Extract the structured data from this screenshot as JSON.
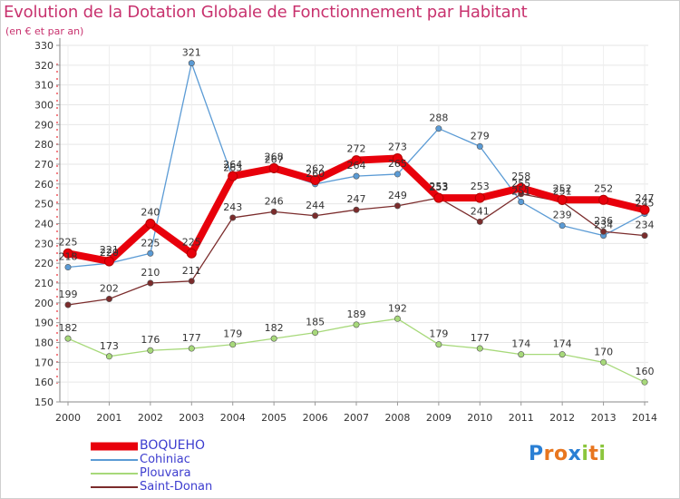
{
  "header": {
    "title": "Evolution de la Dotation Globale de Fonctionnement par Habitant",
    "subtitle": "(en € et par an)"
  },
  "logo": {
    "text": "Proxiti",
    "letters": [
      {
        "ch": "P",
        "color": "#2a7fd4"
      },
      {
        "ch": "r",
        "color": "#e8761f"
      },
      {
        "ch": "o",
        "color": "#e8761f"
      },
      {
        "ch": "x",
        "color": "#2a7fd4"
      },
      {
        "ch": "i",
        "color": "#8cc63e"
      },
      {
        "ch": "t",
        "color": "#e8761f"
      },
      {
        "ch": "i",
        "color": "#8cc63e"
      }
    ]
  },
  "chart_data": {
    "type": "line",
    "title": "Evolution de la Dotation Globale de Fonctionnement par Habitant",
    "subtitle": "(en € et par an)",
    "xlabel": "",
    "ylabel": "",
    "x": [
      "2000",
      "2001",
      "2002",
      "2003",
      "2004",
      "2005",
      "2006",
      "2007",
      "2008",
      "2009",
      "2010",
      "2011",
      "2012",
      "2013",
      "2014"
    ],
    "yticks": [
      150,
      160,
      170,
      180,
      190,
      200,
      210,
      220,
      230,
      240,
      250,
      260,
      270,
      280,
      290,
      300,
      310,
      320,
      330
    ],
    "ylim": [
      150,
      330
    ],
    "grid": true,
    "legend_position": "bottom-left",
    "series": [
      {
        "name": "BOQUEHO",
        "color": "#e8000b",
        "emphasis": "thick",
        "values": [
          225,
          221,
          240,
          225,
          264,
          268,
          262,
          272,
          273,
          253,
          253,
          258,
          252,
          252,
          247
        ],
        "labels": [
          "225",
          "221",
          "240",
          "225",
          "264",
          "268",
          "262",
          "272",
          "273",
          "253",
          "253",
          "258",
          "252",
          "252",
          "247"
        ]
      },
      {
        "name": "Cohiniac",
        "color": "#5b9bd5",
        "emphasis": "thin",
        "values": [
          218,
          220,
          225,
          321,
          263,
          267,
          260,
          264,
          265,
          288,
          279,
          251,
          239,
          234,
          245
        ],
        "labels": [
          "218",
          "220",
          "225",
          "321",
          "263",
          "267",
          "260",
          "264",
          "265",
          "288",
          "279",
          "251",
          "239",
          "234",
          "245"
        ]
      },
      {
        "name": "Plouvara",
        "color": "#a7d97a",
        "emphasis": "thin",
        "values": [
          182,
          173,
          176,
          177,
          179,
          182,
          185,
          189,
          192,
          179,
          177,
          174,
          174,
          170,
          160
        ],
        "labels": [
          "182",
          "173",
          "176",
          "177",
          "179",
          "182",
          "185",
          "189",
          "192",
          "179",
          "177",
          "174",
          "174",
          "170",
          "160"
        ]
      },
      {
        "name": "Saint-Donan",
        "color": "#7b2c2c",
        "emphasis": "thin",
        "values": [
          199,
          202,
          210,
          211,
          243,
          246,
          244,
          247,
          249,
          253,
          241,
          255,
          251,
          236,
          234
        ],
        "labels": [
          "199",
          "202",
          "210",
          "211",
          "243",
          "246",
          "244",
          "247",
          "249",
          "253",
          "241",
          "255",
          "251",
          "236",
          "234"
        ]
      }
    ]
  }
}
